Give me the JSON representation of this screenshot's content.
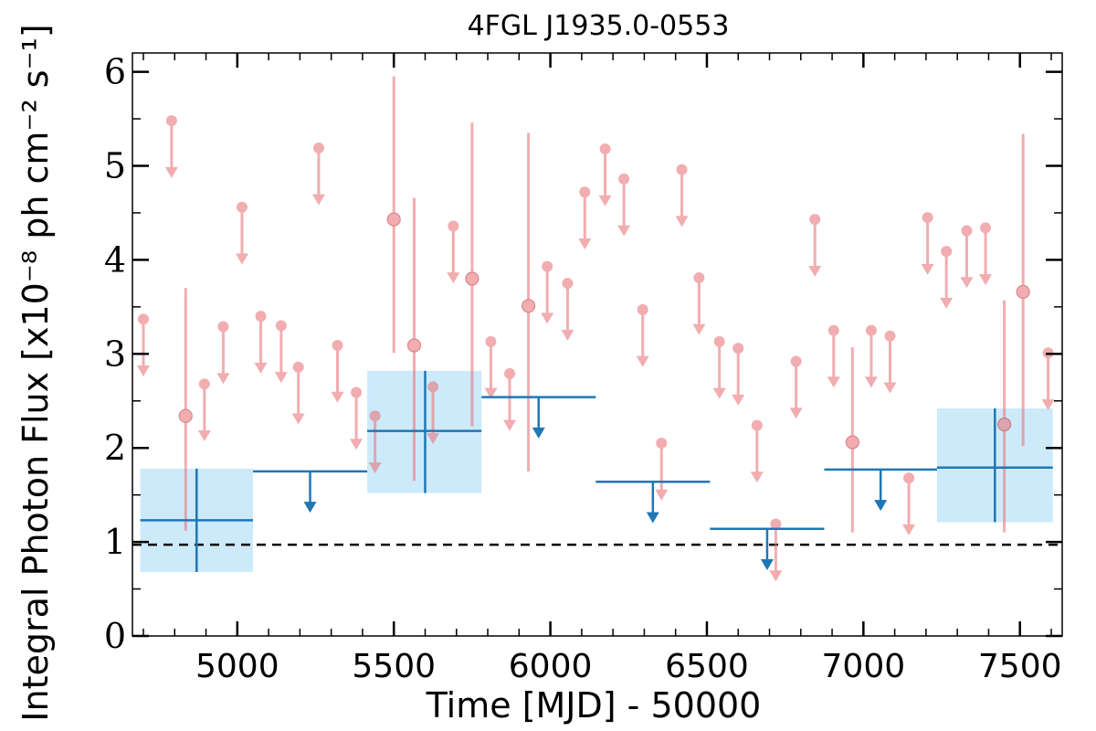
{
  "chart_data": {
    "type": "scatter",
    "title": "4FGL J1935.0-0553",
    "xlabel": "Time [MJD] - 50000",
    "ylabel": "Integral Photon Flux [x10⁻⁸ ph cm⁻² s⁻¹]",
    "xlim": [
      4665,
      7635
    ],
    "ylim": [
      0,
      6.2
    ],
    "xticks": [
      5000,
      5500,
      6000,
      6500,
      7000,
      7500
    ],
    "xtick_labels": [
      "5000",
      "5500",
      "6000",
      "6500",
      "7000",
      "7500"
    ],
    "yticks": [
      0,
      1,
      2,
      3,
      4,
      5,
      6
    ],
    "ytick_labels": [
      "0",
      "1",
      "2",
      "3",
      "4",
      "5",
      "6"
    ],
    "grid": false,
    "reference_line": {
      "y": 0.97,
      "style": "dashed",
      "color": "#000000"
    },
    "colors": {
      "short_bins": "#e8777c",
      "long_bins": "#1f77b4",
      "long_bin_band": "#cdeafb"
    },
    "short_bin_limits": [
      {
        "x": 4700,
        "y": 3.37
      },
      {
        "x": 4790,
        "y": 5.48
      },
      {
        "x": 4895,
        "y": 2.68
      },
      {
        "x": 4955,
        "y": 3.29
      },
      {
        "x": 5015,
        "y": 4.56
      },
      {
        "x": 5075,
        "y": 3.4
      },
      {
        "x": 5140,
        "y": 3.3
      },
      {
        "x": 5195,
        "y": 2.86
      },
      {
        "x": 5260,
        "y": 5.19
      },
      {
        "x": 5320,
        "y": 3.09
      },
      {
        "x": 5380,
        "y": 2.59
      },
      {
        "x": 5440,
        "y": 2.34
      },
      {
        "x": 5625,
        "y": 2.65
      },
      {
        "x": 5690,
        "y": 4.36
      },
      {
        "x": 5810,
        "y": 3.13
      },
      {
        "x": 5870,
        "y": 2.79
      },
      {
        "x": 5990,
        "y": 3.93
      },
      {
        "x": 6055,
        "y": 3.75
      },
      {
        "x": 6110,
        "y": 4.72
      },
      {
        "x": 6175,
        "y": 5.18
      },
      {
        "x": 6235,
        "y": 4.86
      },
      {
        "x": 6295,
        "y": 3.47
      },
      {
        "x": 6355,
        "y": 2.05
      },
      {
        "x": 6420,
        "y": 4.96
      },
      {
        "x": 6475,
        "y": 3.81
      },
      {
        "x": 6540,
        "y": 3.13
      },
      {
        "x": 6600,
        "y": 3.06
      },
      {
        "x": 6660,
        "y": 2.24
      },
      {
        "x": 6720,
        "y": 1.19
      },
      {
        "x": 6785,
        "y": 2.92
      },
      {
        "x": 6845,
        "y": 4.43
      },
      {
        "x": 6905,
        "y": 3.25
      },
      {
        "x": 7025,
        "y": 3.25
      },
      {
        "x": 7085,
        "y": 3.19
      },
      {
        "x": 7145,
        "y": 1.68
      },
      {
        "x": 7205,
        "y": 4.45
      },
      {
        "x": 7265,
        "y": 4.09
      },
      {
        "x": 7330,
        "y": 4.31
      },
      {
        "x": 7390,
        "y": 4.34
      },
      {
        "x": 7590,
        "y": 3.01
      }
    ],
    "short_bin_detections": [
      {
        "x": 4835,
        "y": 2.34,
        "ylo": 1.12,
        "yhi": 3.7
      },
      {
        "x": 5500,
        "y": 4.43,
        "ylo": 3.01,
        "yhi": 5.95
      },
      {
        "x": 5565,
        "y": 3.09,
        "ylo": 1.65,
        "yhi": 4.66
      },
      {
        "x": 5750,
        "y": 3.8,
        "ylo": 2.23,
        "yhi": 5.46
      },
      {
        "x": 5930,
        "y": 3.51,
        "ylo": 1.75,
        "yhi": 5.35
      },
      {
        "x": 6965,
        "y": 2.06,
        "ylo": 1.1,
        "yhi": 3.07
      },
      {
        "x": 7450,
        "y": 2.25,
        "ylo": 1.1,
        "yhi": 3.57
      },
      {
        "x": 7510,
        "y": 3.66,
        "ylo": 2.02,
        "yhi": 5.34
      }
    ],
    "long_bin_detections": [
      {
        "x": 4870,
        "x0": 4690,
        "x1": 5050,
        "y": 1.23,
        "ylo": 0.68,
        "yhi": 1.78
      },
      {
        "x": 5600,
        "x0": 5415,
        "x1": 5780,
        "y": 2.18,
        "ylo": 1.52,
        "yhi": 2.82
      },
      {
        "x": 7420,
        "x0": 7235,
        "x1": 7605,
        "y": 1.79,
        "ylo": 1.21,
        "yhi": 2.42
      }
    ],
    "long_bin_limits": [
      {
        "x0": 5050,
        "x1": 5415,
        "y": 1.75
      },
      {
        "x0": 5780,
        "x1": 6145,
        "y": 2.54
      },
      {
        "x0": 6145,
        "x1": 6510,
        "y": 1.64
      },
      {
        "x0": 6510,
        "x1": 6875,
        "y": 1.14
      },
      {
        "x0": 6875,
        "x1": 7235,
        "y": 1.77
      }
    ]
  }
}
